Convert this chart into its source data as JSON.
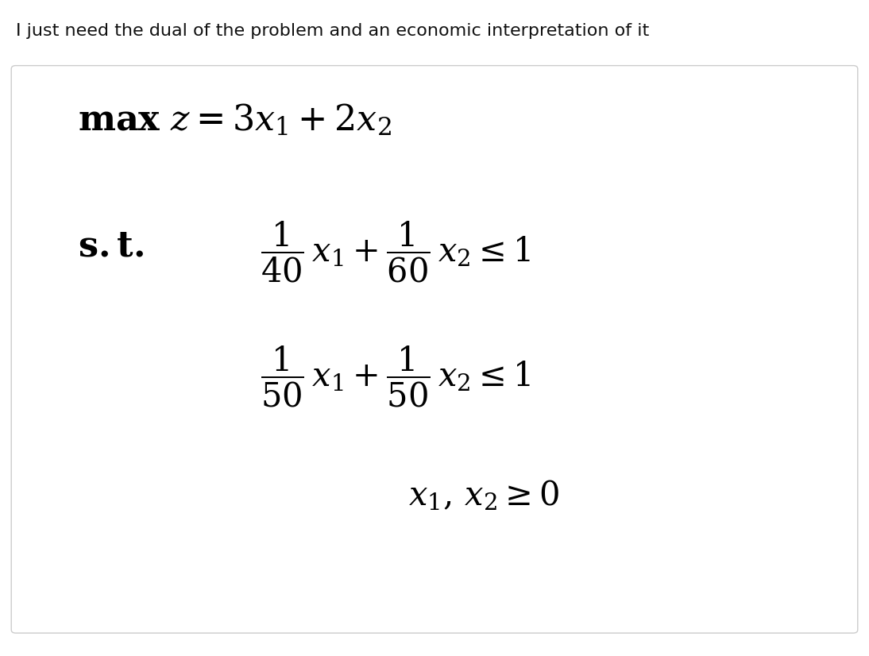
{
  "title_text": "I just need the dual of the problem and an economic interpretation of it",
  "title_fontsize": 16,
  "title_color": "#111111",
  "bg_color": "#ffffff",
  "box_bg_color": "#ffffff",
  "box_edge_color": "#cccccc",
  "math_color": "black",
  "obj_fontsize": 32,
  "st_fontsize": 32,
  "constraint_fontsize": 30
}
